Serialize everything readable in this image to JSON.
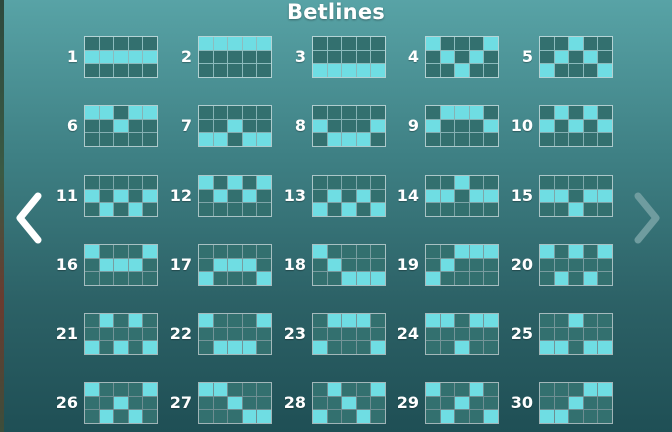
{
  "title": "Betlines",
  "colors": {
    "lit_cell": "#6fdde3",
    "empty_cell": "#33706f",
    "grid_line": "#8fb6b7",
    "arrow_active": "#ffffff",
    "arrow_inactive": "#6f9c9f"
  },
  "nav": {
    "prev_icon": "chevron-left-icon",
    "next_icon": "chevron-right-icon"
  },
  "betlines": [
    {
      "number": "1",
      "rows": [
        1,
        1,
        1,
        1,
        1
      ]
    },
    {
      "number": "2",
      "rows": [
        0,
        0,
        0,
        0,
        0
      ]
    },
    {
      "number": "3",
      "rows": [
        2,
        2,
        2,
        2,
        2
      ]
    },
    {
      "number": "4",
      "rows": [
        0,
        1,
        2,
        1,
        0
      ]
    },
    {
      "number": "5",
      "rows": [
        2,
        1,
        0,
        1,
        2
      ]
    },
    {
      "number": "6",
      "rows": [
        0,
        0,
        1,
        0,
        0
      ]
    },
    {
      "number": "7",
      "rows": [
        2,
        2,
        1,
        2,
        2
      ]
    },
    {
      "number": "8",
      "rows": [
        1,
        2,
        2,
        2,
        1
      ]
    },
    {
      "number": "9",
      "rows": [
        1,
        0,
        0,
        0,
        1
      ]
    },
    {
      "number": "10",
      "rows": [
        1,
        0,
        1,
        0,
        1
      ]
    },
    {
      "number": "11",
      "rows": [
        1,
        2,
        1,
        2,
        1
      ]
    },
    {
      "number": "12",
      "rows": [
        0,
        1,
        0,
        1,
        0
      ]
    },
    {
      "number": "13",
      "rows": [
        2,
        1,
        2,
        1,
        2
      ]
    },
    {
      "number": "14",
      "rows": [
        1,
        1,
        0,
        1,
        1
      ]
    },
    {
      "number": "15",
      "rows": [
        1,
        1,
        2,
        1,
        1
      ]
    },
    {
      "number": "16",
      "rows": [
        0,
        1,
        1,
        1,
        0
      ]
    },
    {
      "number": "17",
      "rows": [
        2,
        1,
        1,
        1,
        2
      ]
    },
    {
      "number": "18",
      "rows": [
        0,
        1,
        2,
        2,
        2
      ]
    },
    {
      "number": "19",
      "rows": [
        2,
        1,
        0,
        0,
        0
      ]
    },
    {
      "number": "20",
      "rows": [
        0,
        2,
        0,
        2,
        0
      ]
    },
    {
      "number": "21",
      "rows": [
        2,
        0,
        2,
        0,
        2
      ]
    },
    {
      "number": "22",
      "rows": [
        0,
        2,
        2,
        2,
        0
      ]
    },
    {
      "number": "23",
      "rows": [
        2,
        0,
        0,
        0,
        2
      ]
    },
    {
      "number": "24",
      "rows": [
        0,
        0,
        2,
        0,
        0
      ]
    },
    {
      "number": "25",
      "rows": [
        2,
        2,
        0,
        2,
        2
      ]
    },
    {
      "number": "26",
      "rows": [
        0,
        2,
        1,
        2,
        0
      ]
    },
    {
      "number": "27",
      "rows": [
        0,
        0,
        1,
        2,
        2
      ]
    },
    {
      "number": "28",
      "rows": [
        2,
        0,
        1,
        2,
        0
      ]
    },
    {
      "number": "29",
      "rows": [
        0,
        2,
        1,
        0,
        2
      ]
    },
    {
      "number": "30",
      "rows": [
        2,
        2,
        1,
        0,
        0
      ]
    }
  ]
}
